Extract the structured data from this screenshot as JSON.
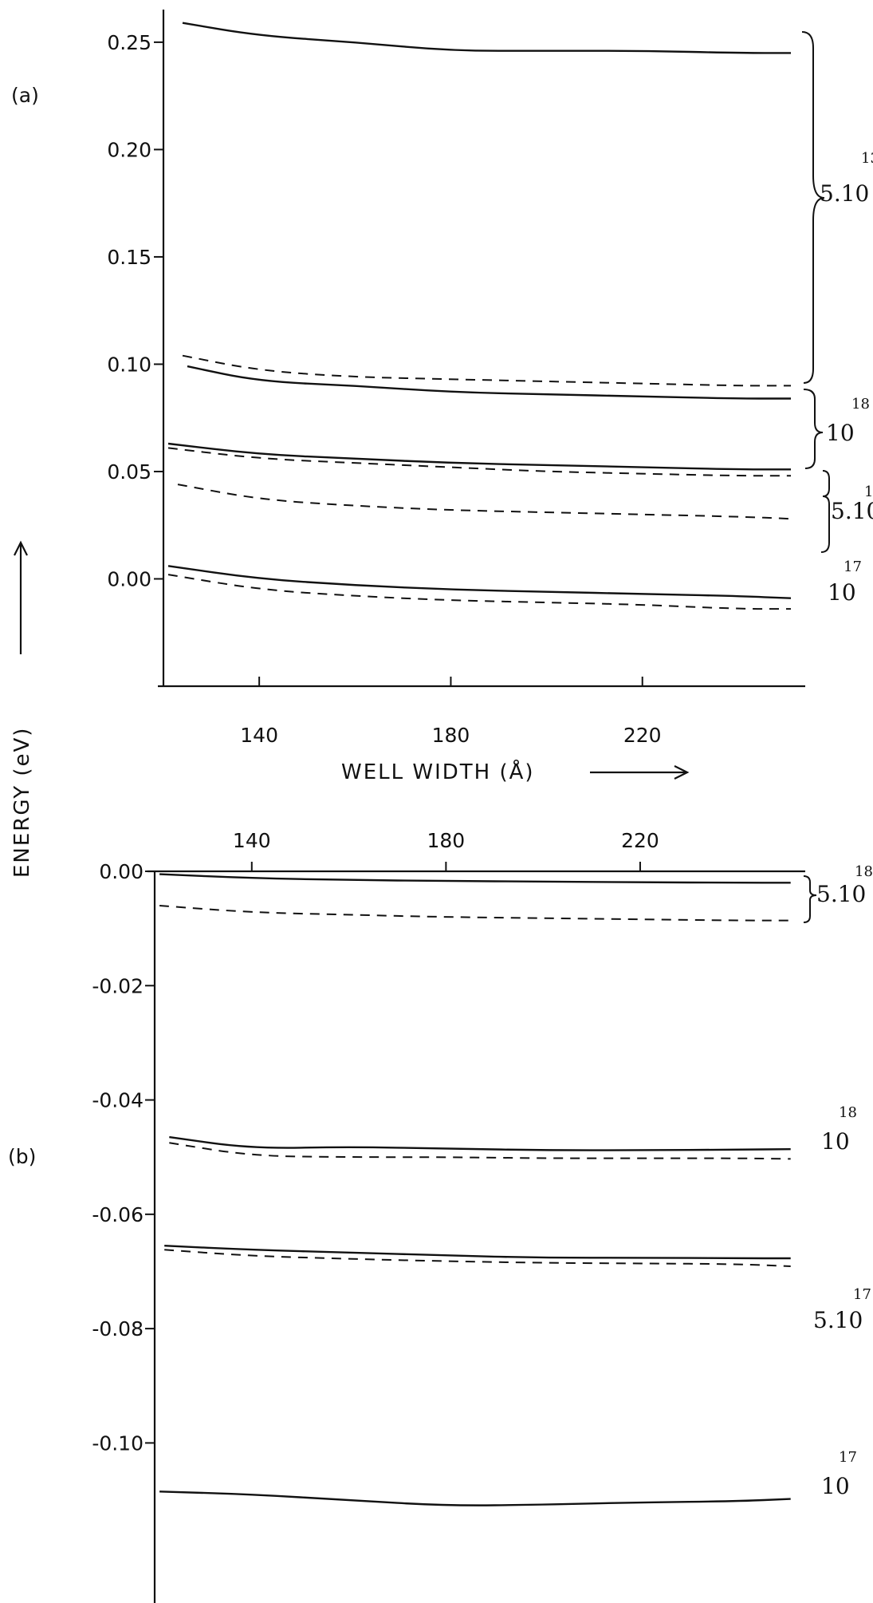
{
  "chart_data": [
    {
      "type": "line",
      "panel_label": "(a)",
      "ylabel": "ENERGY (eV)",
      "xlabel": "WELL WIDTH (Å)",
      "xlim": [
        120,
        254
      ],
      "ylim": [
        -0.05,
        0.26
      ],
      "x_ticks": [
        140,
        180,
        220
      ],
      "y_ticks": [
        0.25,
        0.2,
        0.15,
        0.1,
        0.05,
        0.0
      ],
      "x_tick_labels": [
        "140",
        "180",
        "220"
      ],
      "y_tick_labels": [
        "0.25",
        "0.20",
        "0.15",
        "0.10",
        "0.05",
        "0.00"
      ],
      "series": [
        {
          "style": "solid",
          "x": [
            124,
            140,
            160,
            180,
            200,
            220,
            240,
            251
          ],
          "y": [
            0.259,
            0.253,
            0.25,
            0.246,
            0.246,
            0.246,
            0.245,
            0.245
          ]
        },
        {
          "style": "dashed",
          "x": [
            124,
            140,
            160,
            180,
            200,
            220,
            240,
            251
          ],
          "y": [
            0.104,
            0.097,
            0.094,
            0.093,
            0.092,
            0.091,
            0.09,
            0.09
          ]
        },
        {
          "style": "solid",
          "x": [
            125,
            140,
            160,
            180,
            200,
            220,
            240,
            251
          ],
          "y": [
            0.099,
            0.092,
            0.09,
            0.087,
            0.086,
            0.085,
            0.084,
            0.084
          ]
        },
        {
          "style": "solid",
          "x": [
            121,
            140,
            160,
            180,
            200,
            220,
            240,
            251
          ],
          "y": [
            0.063,
            0.058,
            0.056,
            0.054,
            0.053,
            0.052,
            0.051,
            0.051
          ]
        },
        {
          "style": "dashed",
          "x": [
            121,
            140,
            160,
            180,
            200,
            220,
            240,
            251
          ],
          "y": [
            0.061,
            0.056,
            0.054,
            0.052,
            0.05,
            0.049,
            0.048,
            0.048
          ]
        },
        {
          "style": "dashed",
          "x": [
            123,
            140,
            160,
            180,
            200,
            220,
            240,
            251
          ],
          "y": [
            0.044,
            0.037,
            0.034,
            0.032,
            0.031,
            0.03,
            0.029,
            0.028
          ]
        },
        {
          "style": "solid",
          "x": [
            121,
            140,
            160,
            180,
            200,
            220,
            240,
            251
          ],
          "y": [
            0.006,
            0.0,
            -0.003,
            -0.005,
            -0.006,
            -0.007,
            -0.008,
            -0.009
          ]
        },
        {
          "style": "dashed",
          "x": [
            121,
            140,
            160,
            180,
            200,
            220,
            240,
            251
          ],
          "y": [
            0.002,
            -0.005,
            -0.008,
            -0.01,
            -0.011,
            -0.012,
            -0.014,
            -0.014
          ]
        }
      ],
      "annotations": [
        {
          "base": "5.10",
          "exp": "13"
        },
        {
          "base": "10",
          "exp": "18"
        },
        {
          "base": "5.10",
          "exp": "1"
        },
        {
          "base": "10",
          "exp": "17"
        }
      ]
    },
    {
      "type": "line",
      "panel_label": "(b)",
      "xlim": [
        120,
        254
      ],
      "ylim": [
        -0.128,
        0.0
      ],
      "x_ticks": [
        140,
        180,
        220
      ],
      "y_ticks": [
        0.0,
        -0.02,
        -0.04,
        -0.06,
        -0.08,
        -0.1
      ],
      "x_tick_labels": [
        "140",
        "180",
        "220"
      ],
      "y_tick_labels": [
        "0.00",
        "-0.02",
        "-0.04",
        "-0.06",
        "-0.08",
        "-0.10"
      ],
      "series": [
        {
          "style": "solid",
          "x": [
            121,
            140,
            160,
            180,
            200,
            220,
            240,
            251
          ],
          "y": [
            -0.0005,
            -0.0012,
            -0.0015,
            -0.0017,
            -0.0018,
            -0.0019,
            -0.002,
            -0.002
          ]
        },
        {
          "style": "dashed",
          "x": [
            121,
            140,
            160,
            180,
            200,
            220,
            240,
            251
          ],
          "y": [
            -0.006,
            -0.0072,
            -0.0076,
            -0.008,
            -0.0082,
            -0.0084,
            -0.0086,
            -0.0086
          ]
        },
        {
          "style": "solid",
          "x": [
            123,
            140,
            160,
            180,
            200,
            220,
            240,
            251
          ],
          "y": [
            -0.0465,
            -0.0485,
            -0.0482,
            -0.0485,
            -0.0488,
            -0.0488,
            -0.0487,
            -0.0486
          ]
        },
        {
          "style": "dashed",
          "x": [
            123,
            140,
            160,
            180,
            200,
            220,
            240,
            251
          ],
          "y": [
            -0.0475,
            -0.0498,
            -0.05,
            -0.05,
            -0.0502,
            -0.0502,
            -0.0502,
            -0.0503
          ]
        },
        {
          "style": "solid",
          "x": [
            122,
            140,
            160,
            180,
            200,
            220,
            240,
            251
          ],
          "y": [
            -0.0655,
            -0.0662,
            -0.0667,
            -0.0672,
            -0.0676,
            -0.0676,
            -0.0677,
            -0.0677
          ]
        },
        {
          "style": "dashed",
          "x": [
            122,
            140,
            160,
            180,
            200,
            220,
            240,
            251
          ],
          "y": [
            -0.0662,
            -0.0673,
            -0.0678,
            -0.0682,
            -0.0685,
            -0.0686,
            -0.0687,
            -0.0691
          ]
        },
        {
          "style": "solid",
          "x": [
            121,
            140,
            160,
            180,
            200,
            220,
            240,
            251
          ],
          "y": [
            -0.1085,
            -0.109,
            -0.11,
            -0.111,
            -0.1108,
            -0.1104,
            -0.1102,
            -0.1098
          ]
        }
      ],
      "annotations": [
        {
          "base": "5.10",
          "exp": "18"
        },
        {
          "base": "10",
          "exp": "18"
        },
        {
          "base": "5.10",
          "exp": "17"
        },
        {
          "base": "10",
          "exp": "17"
        }
      ]
    }
  ]
}
